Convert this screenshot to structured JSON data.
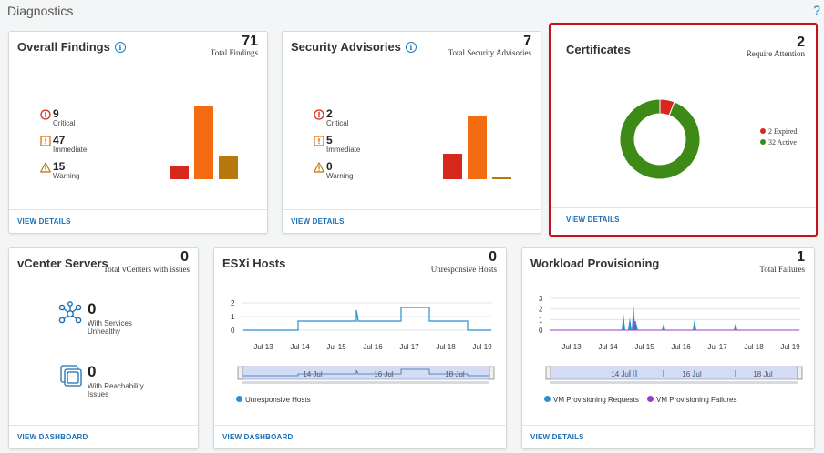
{
  "page": {
    "title": "Diagnostics",
    "help": "?"
  },
  "overall": {
    "title": "Overall Findings",
    "count": "71",
    "count_label": "Total Findings",
    "critical": {
      "value": "9",
      "label": "Critical"
    },
    "immediate": {
      "value": "47",
      "label": "Immediate"
    },
    "warning": {
      "value": "15",
      "label": "Warning"
    },
    "footer": "VIEW DETAILS"
  },
  "security": {
    "title": "Security Advisories",
    "count": "7",
    "count_label": "Total Security Advisories",
    "critical": {
      "value": "2",
      "label": "Critical"
    },
    "immediate": {
      "value": "5",
      "label": "Immediate"
    },
    "warning": {
      "value": "0",
      "label": "Warning"
    },
    "footer": "VIEW DETAILS"
  },
  "certificates": {
    "title": "Certificates",
    "count": "2",
    "count_label": "Require Attention",
    "legend": [
      {
        "label": "2 Expired",
        "color": "#d6281c"
      },
      {
        "label": "32 Active",
        "color": "#3d8a16"
      }
    ],
    "footer": "VIEW DETAILS"
  },
  "vcenter": {
    "title": "vCenter Servers",
    "count": "0",
    "count_label": "Total vCenters with issues",
    "services": {
      "value": "0",
      "label_line1": "With Services",
      "label_line2": "Unhealthy"
    },
    "reachability": {
      "value": "0",
      "label_line1": "With Reachability",
      "label_line2": "Issues"
    },
    "footer": "VIEW DASHBOARD"
  },
  "esxi": {
    "title": "ESXi Hosts",
    "count": "0",
    "count_label": "Unresponsive Hosts",
    "y_ticks": [
      "2",
      "1",
      "0"
    ],
    "x_ticks": [
      "Jul 13",
      "Jul 14",
      "Jul 15",
      "Jul 16",
      "Jul 17",
      "Jul 18",
      "Jul 19"
    ],
    "nav_ticks": [
      "14 Jul",
      "16 Jul",
      "18 Jul"
    ],
    "legend": "Unresponsive Hosts",
    "footer": "VIEW DASHBOARD"
  },
  "workload": {
    "title": "Workload Provisioning",
    "count": "1",
    "count_label": "Total Failures",
    "y_ticks": [
      "3",
      "2",
      "1",
      "0"
    ],
    "x_ticks": [
      "Jul 13",
      "Jul 14",
      "Jul 15",
      "Jul 16",
      "Jul 17",
      "Jul 18",
      "Jul 19"
    ],
    "nav_ticks": [
      "14 Jul",
      "16 Jul",
      "18 Jul"
    ],
    "legend_requests": "VM Provisioning Requests",
    "legend_failures": "VM Provisioning Failures",
    "footer": "VIEW DETAILS"
  },
  "chart_data": [
    {
      "type": "bar",
      "categories": [
        "Critical",
        "Immediate",
        "Warning"
      ],
      "values": [
        9,
        47,
        15
      ],
      "colors": [
        "#d6281c",
        "#f36c12",
        "#b7780d"
      ]
    },
    {
      "type": "bar",
      "categories": [
        "Critical",
        "Immediate",
        "Warning"
      ],
      "values": [
        2,
        5,
        0
      ],
      "colors": [
        "#d6281c",
        "#f36c12",
        "#b7780d"
      ]
    },
    {
      "type": "pie",
      "donut": true,
      "categories": [
        "2 Expired",
        "32 Active"
      ],
      "values": [
        2,
        32
      ],
      "colors": [
        "#d6281c",
        "#3d8a16"
      ]
    }
  ]
}
